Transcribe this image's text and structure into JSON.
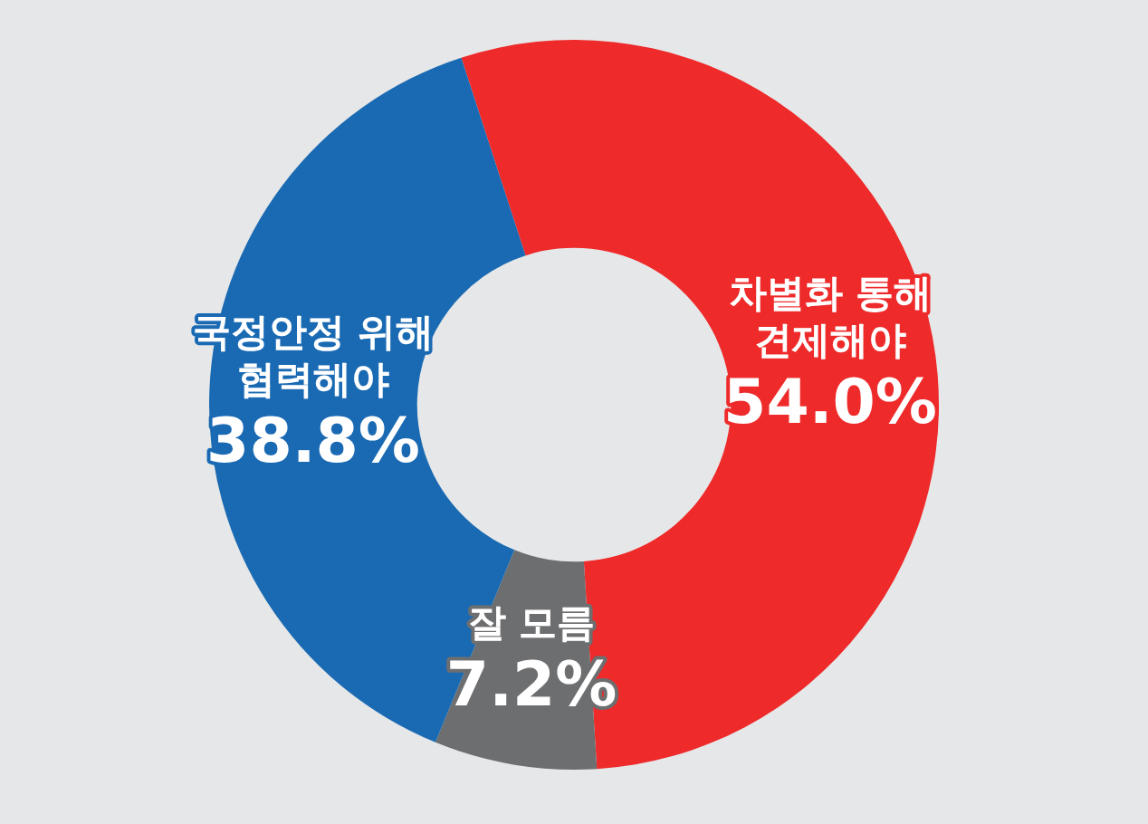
{
  "chart_data": {
    "type": "donut",
    "categories": [
      "차별화 통해 견제해야",
      "잘 모름",
      "국정안정 위해 협력해야"
    ],
    "values": [
      54.0,
      7.2,
      38.8
    ],
    "colors": [
      "#ee2a2a",
      "#6d6e70",
      "#1a6ab3"
    ],
    "value_labels": [
      "54.0%",
      "7.2%",
      "38.8%"
    ],
    "legend": false
  }
}
